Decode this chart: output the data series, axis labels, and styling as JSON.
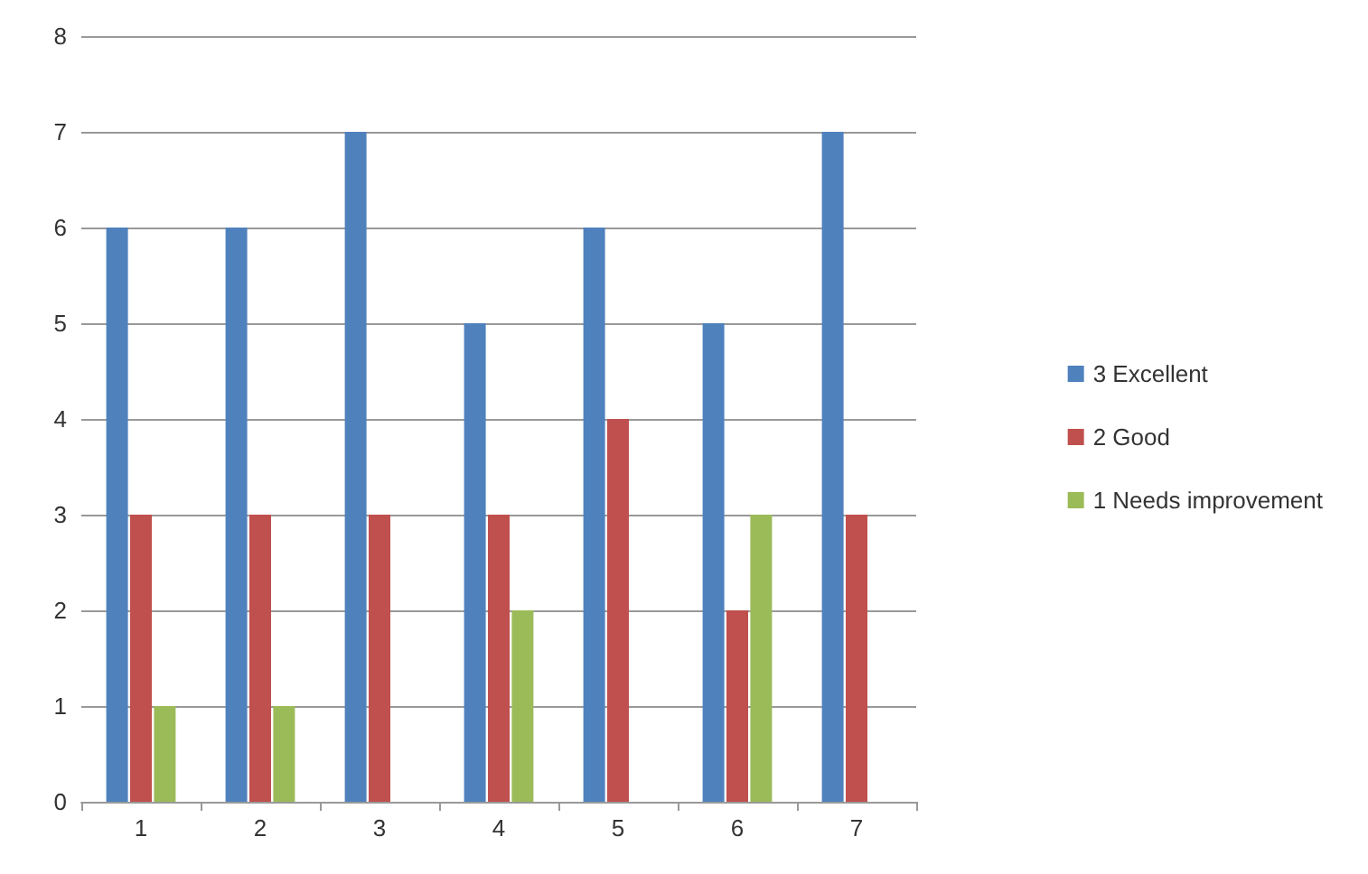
{
  "chart_data": {
    "type": "bar",
    "categories": [
      "1",
      "2",
      "3",
      "4",
      "5",
      "6",
      "7"
    ],
    "series": [
      {
        "name": "3 Excellent",
        "color": "#4f81bd",
        "values": [
          6,
          6,
          7,
          5,
          6,
          5,
          7
        ]
      },
      {
        "name": "2 Good",
        "color": "#c0504d",
        "values": [
          3,
          3,
          3,
          3,
          4,
          2,
          3
        ]
      },
      {
        "name": "1 Needs improvement",
        "color": "#9bbb59",
        "values": [
          1,
          1,
          0,
          2,
          0,
          3,
          0
        ]
      }
    ],
    "ylim": [
      0,
      8
    ],
    "yticks": [
      0,
      1,
      2,
      3,
      4,
      5,
      6,
      7,
      8
    ],
    "grid": "y",
    "legend": "right"
  }
}
